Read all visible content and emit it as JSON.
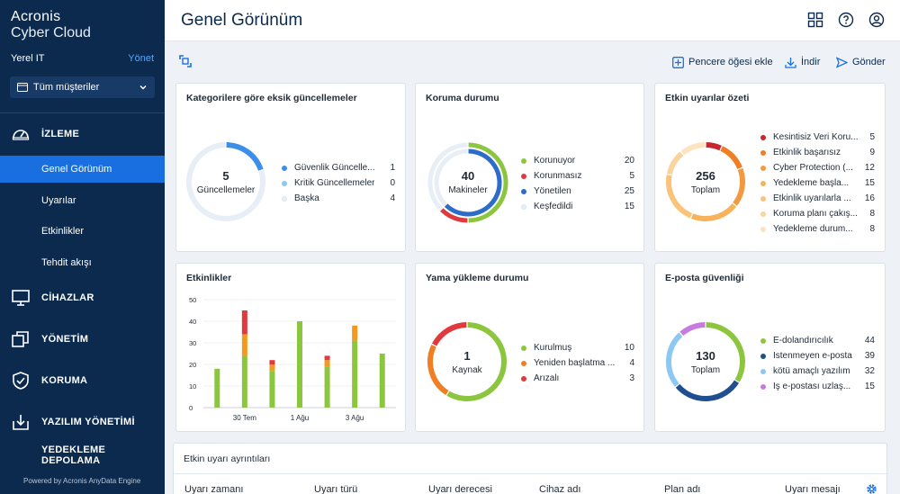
{
  "brand": {
    "line1": "Acronis",
    "line2": "Cyber Cloud"
  },
  "tenant": {
    "name": "Yerel IT",
    "manage": "Yönet"
  },
  "customer_select": {
    "value": "Tüm müşteriler"
  },
  "nav": {
    "monitoring": "İZLEME",
    "overview": "Genel Görünüm",
    "alerts": "Uyarılar",
    "activities": "Etkinlikler",
    "threat_feed": "Tehdit akışı",
    "devices": "CİHAZLAR",
    "management": "YÖNETİM",
    "protection": "KORUMA",
    "software": "YAZILIM YÖNETİMİ",
    "backup_storage": "YEDEKLEME DEPOLAMA"
  },
  "powered_by": "Powered by Acronis AnyData Engine",
  "header": {
    "title": "Genel Görünüm"
  },
  "toolbar": {
    "add_widget": "Pencere öğesi ekle",
    "download": "İndir",
    "send": "Gönder"
  },
  "cards": {
    "missing_updates": {
      "title": "Kategorilere göre eksik güncellemeler",
      "center_value": "5",
      "center_label": "Güncellemeler",
      "items": [
        {
          "name": "Güvenlik Güncelle...",
          "value": "1",
          "color": "#3b8eea"
        },
        {
          "name": "Kritik Güncellemeler",
          "value": "0",
          "color": "#8cc8f2"
        },
        {
          "name": "Başka",
          "value": "4",
          "color": "#e8eef6"
        }
      ]
    },
    "protection_status": {
      "title": "Koruma durumu",
      "center_value": "40",
      "center_label": "Makineler",
      "items": [
        {
          "name": "Korunuyor",
          "value": "20",
          "color": "#8cc63f"
        },
        {
          "name": "Korunmasız",
          "value": "5",
          "color": "#e0393e"
        },
        {
          "name": "Yönetilen",
          "value": "25",
          "color": "#2d6cc8"
        },
        {
          "name": "Keşfedildi",
          "value": "15",
          "color": "#e8eef6"
        }
      ]
    },
    "alerts_summary": {
      "title": "Etkin uyarılar özeti",
      "center_value": "256",
      "center_label": "Toplam",
      "items": [
        {
          "name": "Kesintisiz Veri Koru...",
          "value": "5",
          "color": "#c8262c"
        },
        {
          "name": "Etkinlik başarısız",
          "value": "9",
          "color": "#f07e22"
        },
        {
          "name": "Cyber Protection (...",
          "value": "12",
          "color": "#f39a40"
        },
        {
          "name": "Yedekleme başla...",
          "value": "15",
          "color": "#f7b25a"
        },
        {
          "name": "Etkinlik uyarılarla ...",
          "value": "16",
          "color": "#f9c37a"
        },
        {
          "name": "Koruma planı çakış...",
          "value": "8",
          "color": "#fbd39c"
        },
        {
          "name": "Yedekleme durum...",
          "value": "8",
          "color": "#fde3c0"
        }
      ]
    },
    "activities": {
      "title": "Etkinlikler"
    },
    "patch_status": {
      "title": "Yama yükleme durumu",
      "center_value": "1",
      "center_label": "Kaynak",
      "items": [
        {
          "name": "Kurulmuş",
          "value": "10",
          "color": "#8cc63f"
        },
        {
          "name": "Yeniden başlatma ...",
          "value": "4",
          "color": "#f07e22"
        },
        {
          "name": "Arızalı",
          "value": "3",
          "color": "#e0393e"
        }
      ]
    },
    "email_security": {
      "title": "E-posta güvenliği",
      "center_value": "130",
      "center_label": "Toplam",
      "items": [
        {
          "name": "E-dolandırıcılık",
          "value": "44",
          "color": "#8cc63f"
        },
        {
          "name": "İstenmeyen e-posta",
          "value": "39",
          "color": "#1f4f8f"
        },
        {
          "name": "kötü amaçlı yazılım",
          "value": "32",
          "color": "#8cc8f2"
        },
        {
          "name": "İş e-postası uzlaş...",
          "value": "15",
          "color": "#c77be0"
        }
      ]
    }
  },
  "chart_data": {
    "type": "bar",
    "title": "Etkinlikler",
    "ylim": [
      0,
      50
    ],
    "yticks": [
      "0",
      "10",
      "20",
      "30",
      "40",
      "50"
    ],
    "x_tick_labels": [
      {
        "label": "30 Tem",
        "index": 1
      },
      {
        "label": "1 Ağu",
        "index": 3
      },
      {
        "label": "3 Ağu",
        "index": 5
      }
    ],
    "stacks": [
      {
        "green": 18,
        "orange": 0,
        "red": 0
      },
      {
        "green": 24,
        "orange": 10,
        "red": 11
      },
      {
        "green": 17,
        "orange": 3,
        "red": 2
      },
      {
        "green": 40,
        "orange": 0,
        "red": 0
      },
      {
        "green": 19,
        "orange": 3,
        "red": 2
      },
      {
        "green": 31,
        "orange": 7,
        "red": 0
      },
      {
        "green": 25,
        "orange": 0,
        "red": 0
      }
    ],
    "colors": {
      "green": "#8cc63f",
      "orange": "#f39a1e",
      "red": "#e0393e"
    }
  },
  "alert_table": {
    "title": "Etkin uyarı ayrıntıları",
    "columns": [
      "Uyarı zamanı",
      "Uyarı türü",
      "Uyarı derecesi",
      "Cihaz adı",
      "Plan adı",
      "Uyarı mesajı"
    ]
  }
}
